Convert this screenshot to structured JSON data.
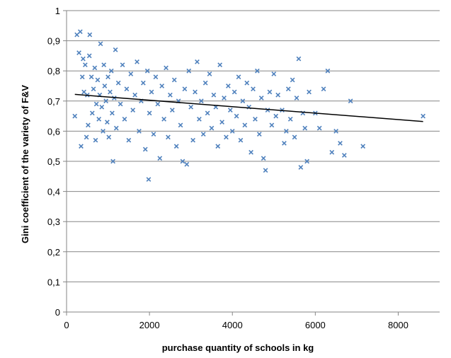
{
  "chart_data": {
    "type": "scatter",
    "title": "",
    "xlabel": "purchase quantity of schools in kg",
    "ylabel": "Gini coefficient of the variety of  F&V",
    "xlim": [
      0,
      9000
    ],
    "ylim": [
      0,
      1
    ],
    "xticks": [
      0,
      2000,
      4000,
      6000,
      8000
    ],
    "yticks": [
      0,
      0.1,
      0.2,
      0.3,
      0.4,
      0.5,
      0.6,
      0.7,
      0.8,
      0.9,
      1
    ],
    "xtick_labels": [
      "0",
      "2000",
      "4000",
      "6000",
      "8000"
    ],
    "ytick_labels": [
      "0",
      "0,1",
      "0,2",
      "0,3",
      "0,4",
      "0,5",
      "0,6",
      "0,7",
      "0,8",
      "0,9",
      "1"
    ],
    "grid": "horizontal",
    "legend": "none",
    "marker": "x",
    "colors": {
      "points": "#4f81bd",
      "trendline": "#000000",
      "grid": "#868686",
      "axis": "#868686"
    },
    "trendline": {
      "x": [
        200,
        8600
      ],
      "y": [
        0.722,
        0.632
      ]
    },
    "series": [
      {
        "values": [
          [
            200,
            0.65
          ],
          [
            250,
            0.92
          ],
          [
            300,
            0.86
          ],
          [
            330,
            0.93
          ],
          [
            350,
            0.55
          ],
          [
            380,
            0.78
          ],
          [
            400,
            0.84
          ],
          [
            420,
            0.73
          ],
          [
            450,
            0.82
          ],
          [
            480,
            0.58
          ],
          [
            500,
            0.72
          ],
          [
            520,
            0.62
          ],
          [
            550,
            0.85
          ],
          [
            560,
            0.92
          ],
          [
            600,
            0.78
          ],
          [
            620,
            0.66
          ],
          [
            650,
            0.74
          ],
          [
            680,
            0.81
          ],
          [
            700,
            0.57
          ],
          [
            720,
            0.69
          ],
          [
            750,
            0.77
          ],
          [
            780,
            0.64
          ],
          [
            800,
            0.72
          ],
          [
            820,
            0.89
          ],
          [
            850,
            0.68
          ],
          [
            880,
            0.6
          ],
          [
            900,
            0.82
          ],
          [
            920,
            0.75
          ],
          [
            950,
            0.7
          ],
          [
            980,
            0.63
          ],
          [
            1000,
            0.78
          ],
          [
            1020,
            0.58
          ],
          [
            1050,
            0.73
          ],
          [
            1080,
            0.8
          ],
          [
            1100,
            0.66
          ],
          [
            1120,
            0.5
          ],
          [
            1150,
            0.71
          ],
          [
            1180,
            0.87
          ],
          [
            1200,
            0.61
          ],
          [
            1250,
            0.76
          ],
          [
            1300,
            0.69
          ],
          [
            1350,
            0.82
          ],
          [
            1400,
            0.64
          ],
          [
            1450,
            0.74
          ],
          [
            1500,
            0.57
          ],
          [
            1550,
            0.79
          ],
          [
            1600,
            0.67
          ],
          [
            1650,
            0.72
          ],
          [
            1700,
            0.83
          ],
          [
            1750,
            0.6
          ],
          [
            1800,
            0.7
          ],
          [
            1850,
            0.76
          ],
          [
            1900,
            0.54
          ],
          [
            1950,
            0.8
          ],
          [
            1980,
            0.44
          ],
          [
            2000,
            0.66
          ],
          [
            2050,
            0.73
          ],
          [
            2100,
            0.59
          ],
          [
            2150,
            0.78
          ],
          [
            2200,
            0.69
          ],
          [
            2250,
            0.51
          ],
          [
            2300,
            0.75
          ],
          [
            2350,
            0.64
          ],
          [
            2400,
            0.81
          ],
          [
            2450,
            0.58
          ],
          [
            2500,
            0.72
          ],
          [
            2550,
            0.67
          ],
          [
            2600,
            0.77
          ],
          [
            2650,
            0.55
          ],
          [
            2700,
            0.7
          ],
          [
            2750,
            0.62
          ],
          [
            2800,
            0.5
          ],
          [
            2850,
            0.74
          ],
          [
            2900,
            0.49
          ],
          [
            2950,
            0.8
          ],
          [
            3000,
            0.68
          ],
          [
            3050,
            0.57
          ],
          [
            3100,
            0.73
          ],
          [
            3150,
            0.83
          ],
          [
            3200,
            0.64
          ],
          [
            3250,
            0.7
          ],
          [
            3300,
            0.59
          ],
          [
            3350,
            0.76
          ],
          [
            3400,
            0.66
          ],
          [
            3450,
            0.79
          ],
          [
            3500,
            0.61
          ],
          [
            3550,
            0.72
          ],
          [
            3600,
            0.68
          ],
          [
            3650,
            0.55
          ],
          [
            3700,
            0.82
          ],
          [
            3750,
            0.63
          ],
          [
            3800,
            0.71
          ],
          [
            3850,
            0.58
          ],
          [
            3900,
            0.75
          ],
          [
            3950,
            0.67
          ],
          [
            4000,
            0.6
          ],
          [
            4050,
            0.73
          ],
          [
            4100,
            0.65
          ],
          [
            4150,
            0.78
          ],
          [
            4200,
            0.57
          ],
          [
            4250,
            0.7
          ],
          [
            4300,
            0.62
          ],
          [
            4350,
            0.76
          ],
          [
            4400,
            0.68
          ],
          [
            4450,
            0.53
          ],
          [
            4500,
            0.74
          ],
          [
            4550,
            0.64
          ],
          [
            4600,
            0.8
          ],
          [
            4650,
            0.59
          ],
          [
            4700,
            0.71
          ],
          [
            4750,
            0.51
          ],
          [
            4800,
            0.47
          ],
          [
            4850,
            0.67
          ],
          [
            4900,
            0.73
          ],
          [
            4950,
            0.62
          ],
          [
            5000,
            0.79
          ],
          [
            5050,
            0.65
          ],
          [
            5100,
            0.72
          ],
          [
            5200,
            0.67
          ],
          [
            5250,
            0.56
          ],
          [
            5300,
            0.6
          ],
          [
            5350,
            0.74
          ],
          [
            5400,
            0.64
          ],
          [
            5450,
            0.77
          ],
          [
            5500,
            0.58
          ],
          [
            5550,
            0.71
          ],
          [
            5600,
            0.84
          ],
          [
            5650,
            0.48
          ],
          [
            5700,
            0.66
          ],
          [
            5750,
            0.61
          ],
          [
            5800,
            0.5
          ],
          [
            5850,
            0.73
          ],
          [
            6000,
            0.66
          ],
          [
            6100,
            0.61
          ],
          [
            6200,
            0.74
          ],
          [
            6300,
            0.8
          ],
          [
            6400,
            0.53
          ],
          [
            6500,
            0.6
          ],
          [
            6600,
            0.56
          ],
          [
            6700,
            0.52
          ],
          [
            6850,
            0.7
          ],
          [
            7150,
            0.55
          ],
          [
            8600,
            0.65
          ]
        ]
      }
    ]
  }
}
